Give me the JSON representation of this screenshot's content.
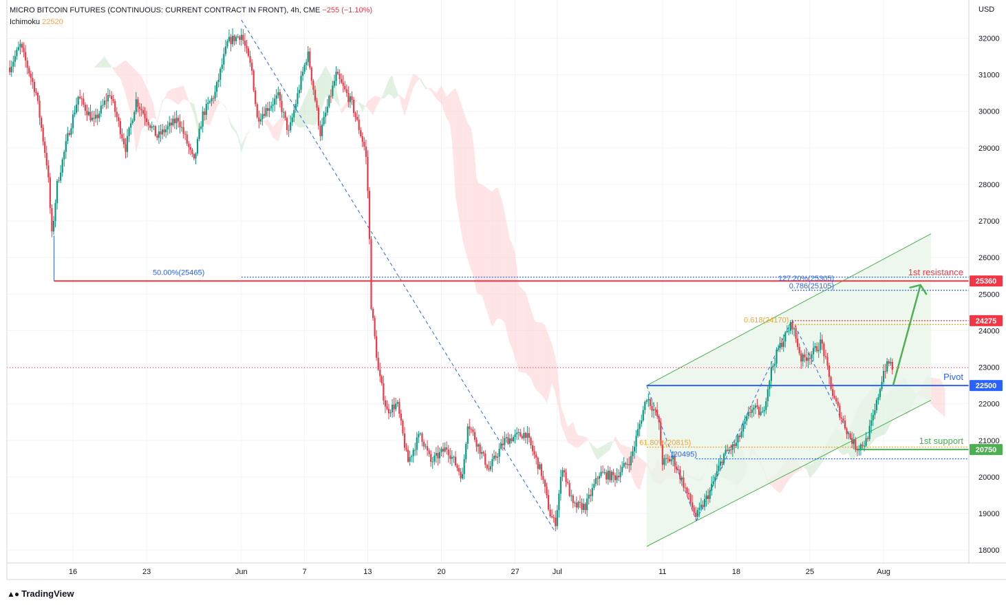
{
  "header": {
    "symbol": "MICRO BITCOIN FUTURES (CONTINUOUS: CURRENT CONTRACT IN FRONT), 4h, CME",
    "change": "−255 (−1.10%)",
    "indicator_name": "Ichimoku",
    "indicator_value": "22520"
  },
  "axis_currency": "USD",
  "brand": {
    "name": "TradingView",
    "icon": "tradingview-logo-icon"
  },
  "colors": {
    "bull": "#089981",
    "bear": "#f23645",
    "resistance": "#f23645",
    "pivot": "#2962ff",
    "support": "#4caf50",
    "fib_blue": "#2962ff",
    "fib_orange": "#f7a31c",
    "cloud_red": "#ffcdd2",
    "cloud_green": "#c8e6c9",
    "channel": "#4caf50"
  },
  "chart_data": {
    "type": "candlestick",
    "timeframe": "4h",
    "y_ticks": [
      32000,
      31000,
      30000,
      29000,
      28000,
      27000,
      26000,
      25000,
      24000,
      23000,
      22000,
      21000,
      20000,
      19000,
      18000
    ],
    "ylim": [
      17600,
      33000
    ],
    "x_ticks": [
      {
        "label": "16",
        "day": 16
      },
      {
        "label": "23",
        "day": 23
      },
      {
        "label": "Jun",
        "day": 32
      },
      {
        "label": "7",
        "day": 38
      },
      {
        "label": "13",
        "day": 44
      },
      {
        "label": "20",
        "day": 51
      },
      {
        "label": "27",
        "day": 58
      },
      {
        "label": "Jul",
        "day": 62
      },
      {
        "label": "11",
        "day": 72
      },
      {
        "label": "18",
        "day": 79
      },
      {
        "label": "25",
        "day": 86
      },
      {
        "label": "Aug",
        "day": 93
      }
    ],
    "waypoints": [
      [
        10,
        31200
      ],
      [
        11,
        31800
      ],
      [
        12.5,
        30500
      ],
      [
        13.6,
        28400
      ],
      [
        14.0,
        26600
      ],
      [
        14.5,
        28000
      ],
      [
        15.5,
        29300
      ],
      [
        16.5,
        30400
      ],
      [
        18,
        29700
      ],
      [
        19.5,
        30500
      ],
      [
        21,
        29000
      ],
      [
        22,
        30300
      ],
      [
        24,
        29300
      ],
      [
        26,
        29800
      ],
      [
        27.5,
        28600
      ],
      [
        28.3,
        29900
      ],
      [
        29.5,
        30500
      ],
      [
        30.7,
        31900
      ],
      [
        32,
        32100
      ],
      [
        33,
        31100
      ],
      [
        33.5,
        29800
      ],
      [
        35.5,
        30400
      ],
      [
        36.5,
        29400
      ],
      [
        37.7,
        30900
      ],
      [
        38.3,
        31600
      ],
      [
        39.5,
        29400
      ],
      [
        41,
        31000
      ],
      [
        42.5,
        30200
      ],
      [
        43.8,
        28900
      ],
      [
        44.1,
        27300
      ],
      [
        44.3,
        24800
      ],
      [
        45,
        22900
      ],
      [
        45.8,
        21800
      ],
      [
        46.8,
        22000
      ],
      [
        47.8,
        20400
      ],
      [
        49,
        21200
      ],
      [
        50,
        20400
      ],
      [
        51.5,
        20800
      ],
      [
        53,
        20000
      ],
      [
        53.5,
        21500
      ],
      [
        55.5,
        20200
      ],
      [
        57,
        21000
      ],
      [
        59,
        21200
      ],
      [
        60.5,
        20100
      ],
      [
        61.3,
        19000
      ],
      [
        61.8,
        18700
      ],
      [
        62.5,
        20300
      ],
      [
        63.5,
        19200
      ],
      [
        64.7,
        19200
      ],
      [
        66,
        20100
      ],
      [
        67.5,
        20000
      ],
      [
        69,
        20500
      ],
      [
        70.5,
        22200
      ],
      [
        71.6,
        21600
      ],
      [
        72,
        20400
      ],
      [
        73,
        20500
      ],
      [
        74,
        19800
      ],
      [
        75.2,
        18900
      ],
      [
        76.5,
        19600
      ],
      [
        77.8,
        20600
      ],
      [
        79,
        20900
      ],
      [
        80.5,
        21900
      ],
      [
        81.5,
        21700
      ],
      [
        82.3,
        22900
      ],
      [
        83,
        23500
      ],
      [
        84.3,
        24200
      ],
      [
        85.2,
        23200
      ],
      [
        86.3,
        23400
      ],
      [
        87.1,
        23700
      ],
      [
        88.2,
        22200
      ],
      [
        89.6,
        21200
      ],
      [
        90.4,
        20800
      ],
      [
        91.3,
        20950
      ],
      [
        92.1,
        21700
      ],
      [
        93,
        22900
      ],
      [
        93.6,
        23150
      ],
      [
        93.9,
        22950
      ]
    ],
    "series_note": "",
    "levels": [
      {
        "name": "1st resistance",
        "value": 25360,
        "label": "25360"
      },
      {
        "name": "Pivot",
        "value": 22500,
        "label": "22500"
      },
      {
        "name": "1st support",
        "value": 20750,
        "label": "20750"
      },
      {
        "name": "",
        "value": 24275,
        "label": "24275"
      }
    ],
    "fib_labels": [
      {
        "text": "50.00%(25465)",
        "value": 25465
      },
      {
        "text": "127.20%(25305)",
        "value": 25305
      },
      {
        "text": "0.786(25105)",
        "value": 25105
      },
      {
        "text": "0.618(24170)",
        "value": 24170
      },
      {
        "text": "61.80%(20815)",
        "value": 20815
      },
      {
        "text": "(20495)",
        "value": 20495
      }
    ],
    "last_price_dotted": 22990,
    "channel": {
      "lower": [
        [
          70.5,
          18100
        ],
        [
          97.5,
          22100
        ]
      ],
      "upper": [
        [
          70.5,
          22500
        ],
        [
          97.5,
          26650
        ]
      ]
    }
  }
}
